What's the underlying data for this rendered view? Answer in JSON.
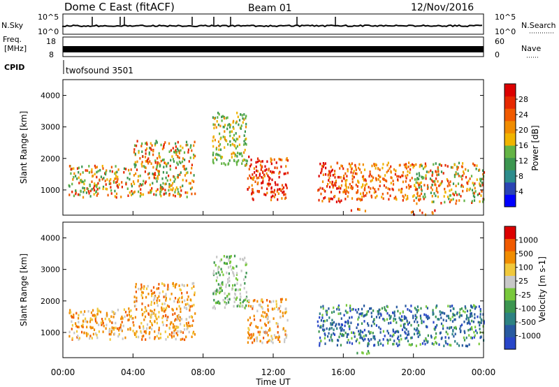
{
  "header": {
    "title": "Dome C East (fitACF)",
    "beam": "Beam 01",
    "date": "12/Nov/2016"
  },
  "status": {
    "nsky_label": "N.Sky",
    "nsky_ticks": [
      "10^5",
      "10^0"
    ],
    "nsearch_label": "N.Search",
    "nsearch_ticks": [
      "10^5",
      "10^0"
    ],
    "freq_label_1": "Freq.",
    "freq_label_2": "[MHz]",
    "freq_ticks": [
      "18",
      "8"
    ],
    "nave_label": "Nave",
    "nave_ticks": [
      "60",
      "0"
    ],
    "cpid_label": "CPID",
    "cpid_value": "twofsound 3501"
  },
  "chart_data": [
    {
      "type": "heatmap",
      "name": "power",
      "ylabel": "Slant Range [km]",
      "yticks": [
        1000,
        2000,
        3000,
        4000
      ],
      "ylim": [
        200,
        4500
      ],
      "xlim_hours": [
        0,
        24
      ],
      "colorbar": {
        "label": "Power [dB]",
        "ticks": [
          "28",
          "24",
          "20",
          "16",
          "12",
          "8",
          "4"
        ],
        "colors": [
          "#0000ff",
          "#2a44b4",
          "#2d8c8c",
          "#3c9650",
          "#64b446",
          "#f0b400",
          "#f08c00",
          "#f05a00",
          "#e62800",
          "#dc0000"
        ]
      },
      "regions": [
        {
          "x": [
            0.3,
            4.0
          ],
          "y": [
            800,
            1800
          ],
          "dominant": "mixed"
        },
        {
          "x": [
            4.0,
            7.5
          ],
          "y": [
            800,
            2600
          ],
          "dominant": "mixed"
        },
        {
          "x": [
            8.5,
            10.5
          ],
          "y": [
            1800,
            3500
          ],
          "dominant": "green"
        },
        {
          "x": [
            10.5,
            12.8
          ],
          "y": [
            700,
            2100
          ],
          "dominant": "red"
        },
        {
          "x": [
            14.5,
            16.0
          ],
          "y": [
            600,
            1900
          ],
          "dominant": "red"
        },
        {
          "x": [
            16.0,
            20.0
          ],
          "y": [
            700,
            1900
          ],
          "dominant": "orange"
        },
        {
          "x": [
            16.2,
            17.5
          ],
          "y": [
            350,
            450
          ],
          "dominant": "orange"
        },
        {
          "x": [
            19.8,
            21.2
          ],
          "y": [
            250,
            400
          ],
          "dominant": "red"
        },
        {
          "x": [
            20.0,
            24.0
          ],
          "y": [
            600,
            1900
          ],
          "dominant": "mixed"
        }
      ]
    },
    {
      "type": "heatmap",
      "name": "velocity",
      "ylabel": "Slant Range [km]",
      "yticks": [
        1000,
        2000,
        3000,
        4000
      ],
      "ylim": [
        200,
        4500
      ],
      "xlim_hours": [
        0,
        24
      ],
      "xlabel": "Time UT",
      "xticks": [
        "00:00",
        "04:00",
        "08:00",
        "12:00",
        "16:00",
        "20:00",
        "00:00"
      ],
      "colorbar": {
        "label": "Velocity [m s-1]",
        "ticks": [
          "1000",
          "500",
          "100",
          "25",
          "-25",
          "-100",
          "-500",
          "-1000"
        ],
        "colors": [
          "#2846c8",
          "#285aa0",
          "#2d8282",
          "#3c9650",
          "#78c83c",
          "#c8c8c8",
          "#f0c83c",
          "#f08c00",
          "#f05a00",
          "#dc0000"
        ]
      },
      "regions": [
        {
          "x": [
            0.3,
            4.0
          ],
          "y": [
            800,
            1800
          ],
          "dominant": "orange"
        },
        {
          "x": [
            4.0,
            7.5
          ],
          "y": [
            800,
            2600
          ],
          "dominant": "orange"
        },
        {
          "x": [
            8.5,
            10.5
          ],
          "y": [
            1800,
            3500
          ],
          "dominant": "grey"
        },
        {
          "x": [
            10.5,
            12.8
          ],
          "y": [
            700,
            2100
          ],
          "dominant": "orange"
        },
        {
          "x": [
            14.5,
            20.0
          ],
          "y": [
            600,
            1900
          ],
          "dominant": "blue"
        },
        {
          "x": [
            16.2,
            17.5
          ],
          "y": [
            350,
            450
          ],
          "dominant": "green"
        },
        {
          "x": [
            20.0,
            24.0
          ],
          "y": [
            600,
            1900
          ],
          "dominant": "blue"
        }
      ]
    }
  ]
}
